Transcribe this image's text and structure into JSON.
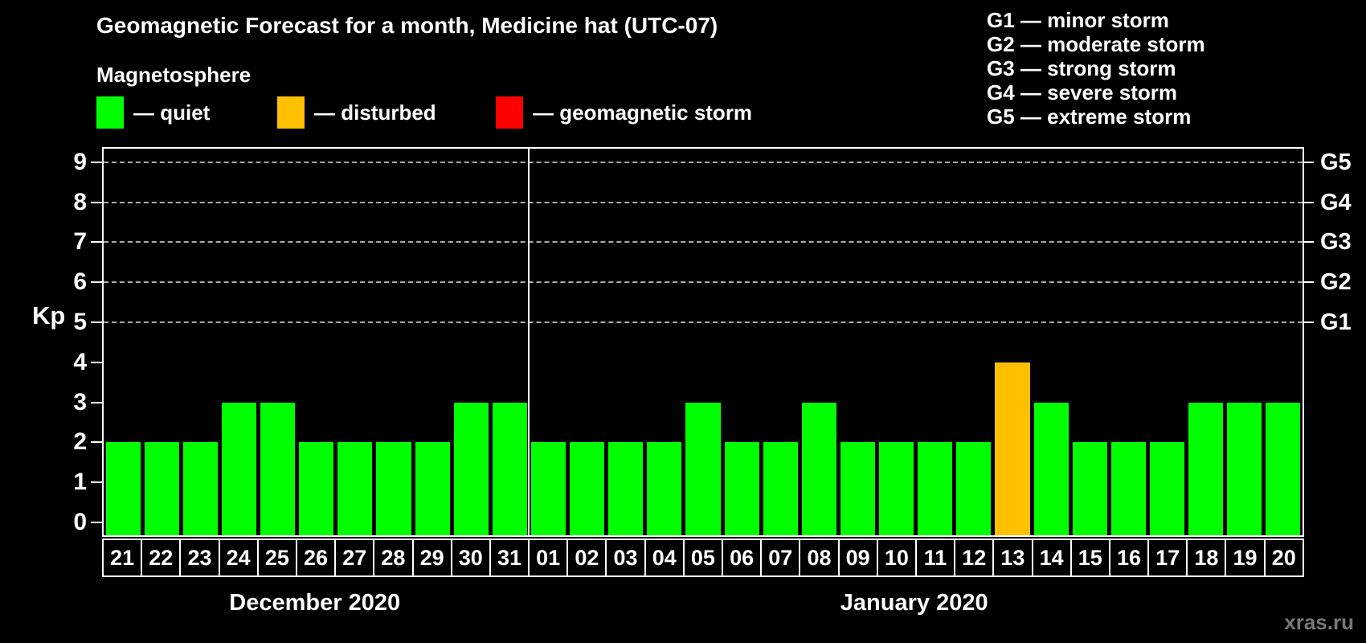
{
  "header": {
    "title": "Geomagnetic Forecast for a month, Medicine hat (UTC-07)",
    "subtitle": "Magnetosphere",
    "legend": [
      {
        "status": "quiet",
        "label": "— quiet",
        "color": "#00ff00"
      },
      {
        "status": "disturbed",
        "label": "— disturbed",
        "color": "#ffc000"
      },
      {
        "status": "storm",
        "label": "— geomagnetic storm",
        "color": "#ff0000"
      }
    ],
    "g_scale_legend": [
      "G1 — minor storm",
      "G2 — moderate storm",
      "G3 — strong storm",
      "G4 — severe storm",
      "G5 — extreme storm"
    ]
  },
  "chart_data": {
    "type": "bar",
    "title": "Geomagnetic Forecast for a month, Medicine hat (UTC-07)",
    "ylabel": "Kp",
    "ylim": [
      0,
      9.5
    ],
    "yticks": [
      0,
      1,
      2,
      3,
      4,
      5,
      6,
      7,
      8,
      9
    ],
    "gridline_kp": [
      5,
      6,
      7,
      8,
      9
    ],
    "right_axis": [
      {
        "kp": 5,
        "label": "G1"
      },
      {
        "kp": 6,
        "label": "G2"
      },
      {
        "kp": 7,
        "label": "G3"
      },
      {
        "kp": 8,
        "label": "G4"
      },
      {
        "kp": 9,
        "label": "G5"
      }
    ],
    "categories": [
      "21",
      "22",
      "23",
      "24",
      "25",
      "26",
      "27",
      "28",
      "29",
      "30",
      "31",
      "01",
      "02",
      "03",
      "04",
      "05",
      "06",
      "07",
      "08",
      "09",
      "10",
      "11",
      "12",
      "13",
      "14",
      "15",
      "16",
      "17",
      "18",
      "19",
      "20"
    ],
    "values": [
      2,
      2,
      2,
      3,
      3,
      2,
      2,
      2,
      2,
      3,
      3,
      2,
      2,
      2,
      2,
      3,
      2,
      2,
      3,
      2,
      2,
      2,
      2,
      4,
      3,
      2,
      2,
      2,
      3,
      3,
      3
    ],
    "statuses": [
      "quiet",
      "quiet",
      "quiet",
      "quiet",
      "quiet",
      "quiet",
      "quiet",
      "quiet",
      "quiet",
      "quiet",
      "quiet",
      "quiet",
      "quiet",
      "quiet",
      "quiet",
      "quiet",
      "quiet",
      "quiet",
      "quiet",
      "quiet",
      "quiet",
      "quiet",
      "quiet",
      "disturbed",
      "quiet",
      "quiet",
      "quiet",
      "quiet",
      "quiet",
      "quiet",
      "quiet"
    ],
    "status_colors": {
      "quiet": "#00ff00",
      "disturbed": "#ffc000",
      "storm": "#ff0000"
    },
    "month_groups": [
      {
        "label": "December 2020",
        "count": 11
      },
      {
        "label": "January 2020",
        "count": 20
      }
    ],
    "legend_position": "top",
    "grid": "dashed horizontal lines at Kp 5–9 only"
  },
  "watermark": "xras.ru"
}
